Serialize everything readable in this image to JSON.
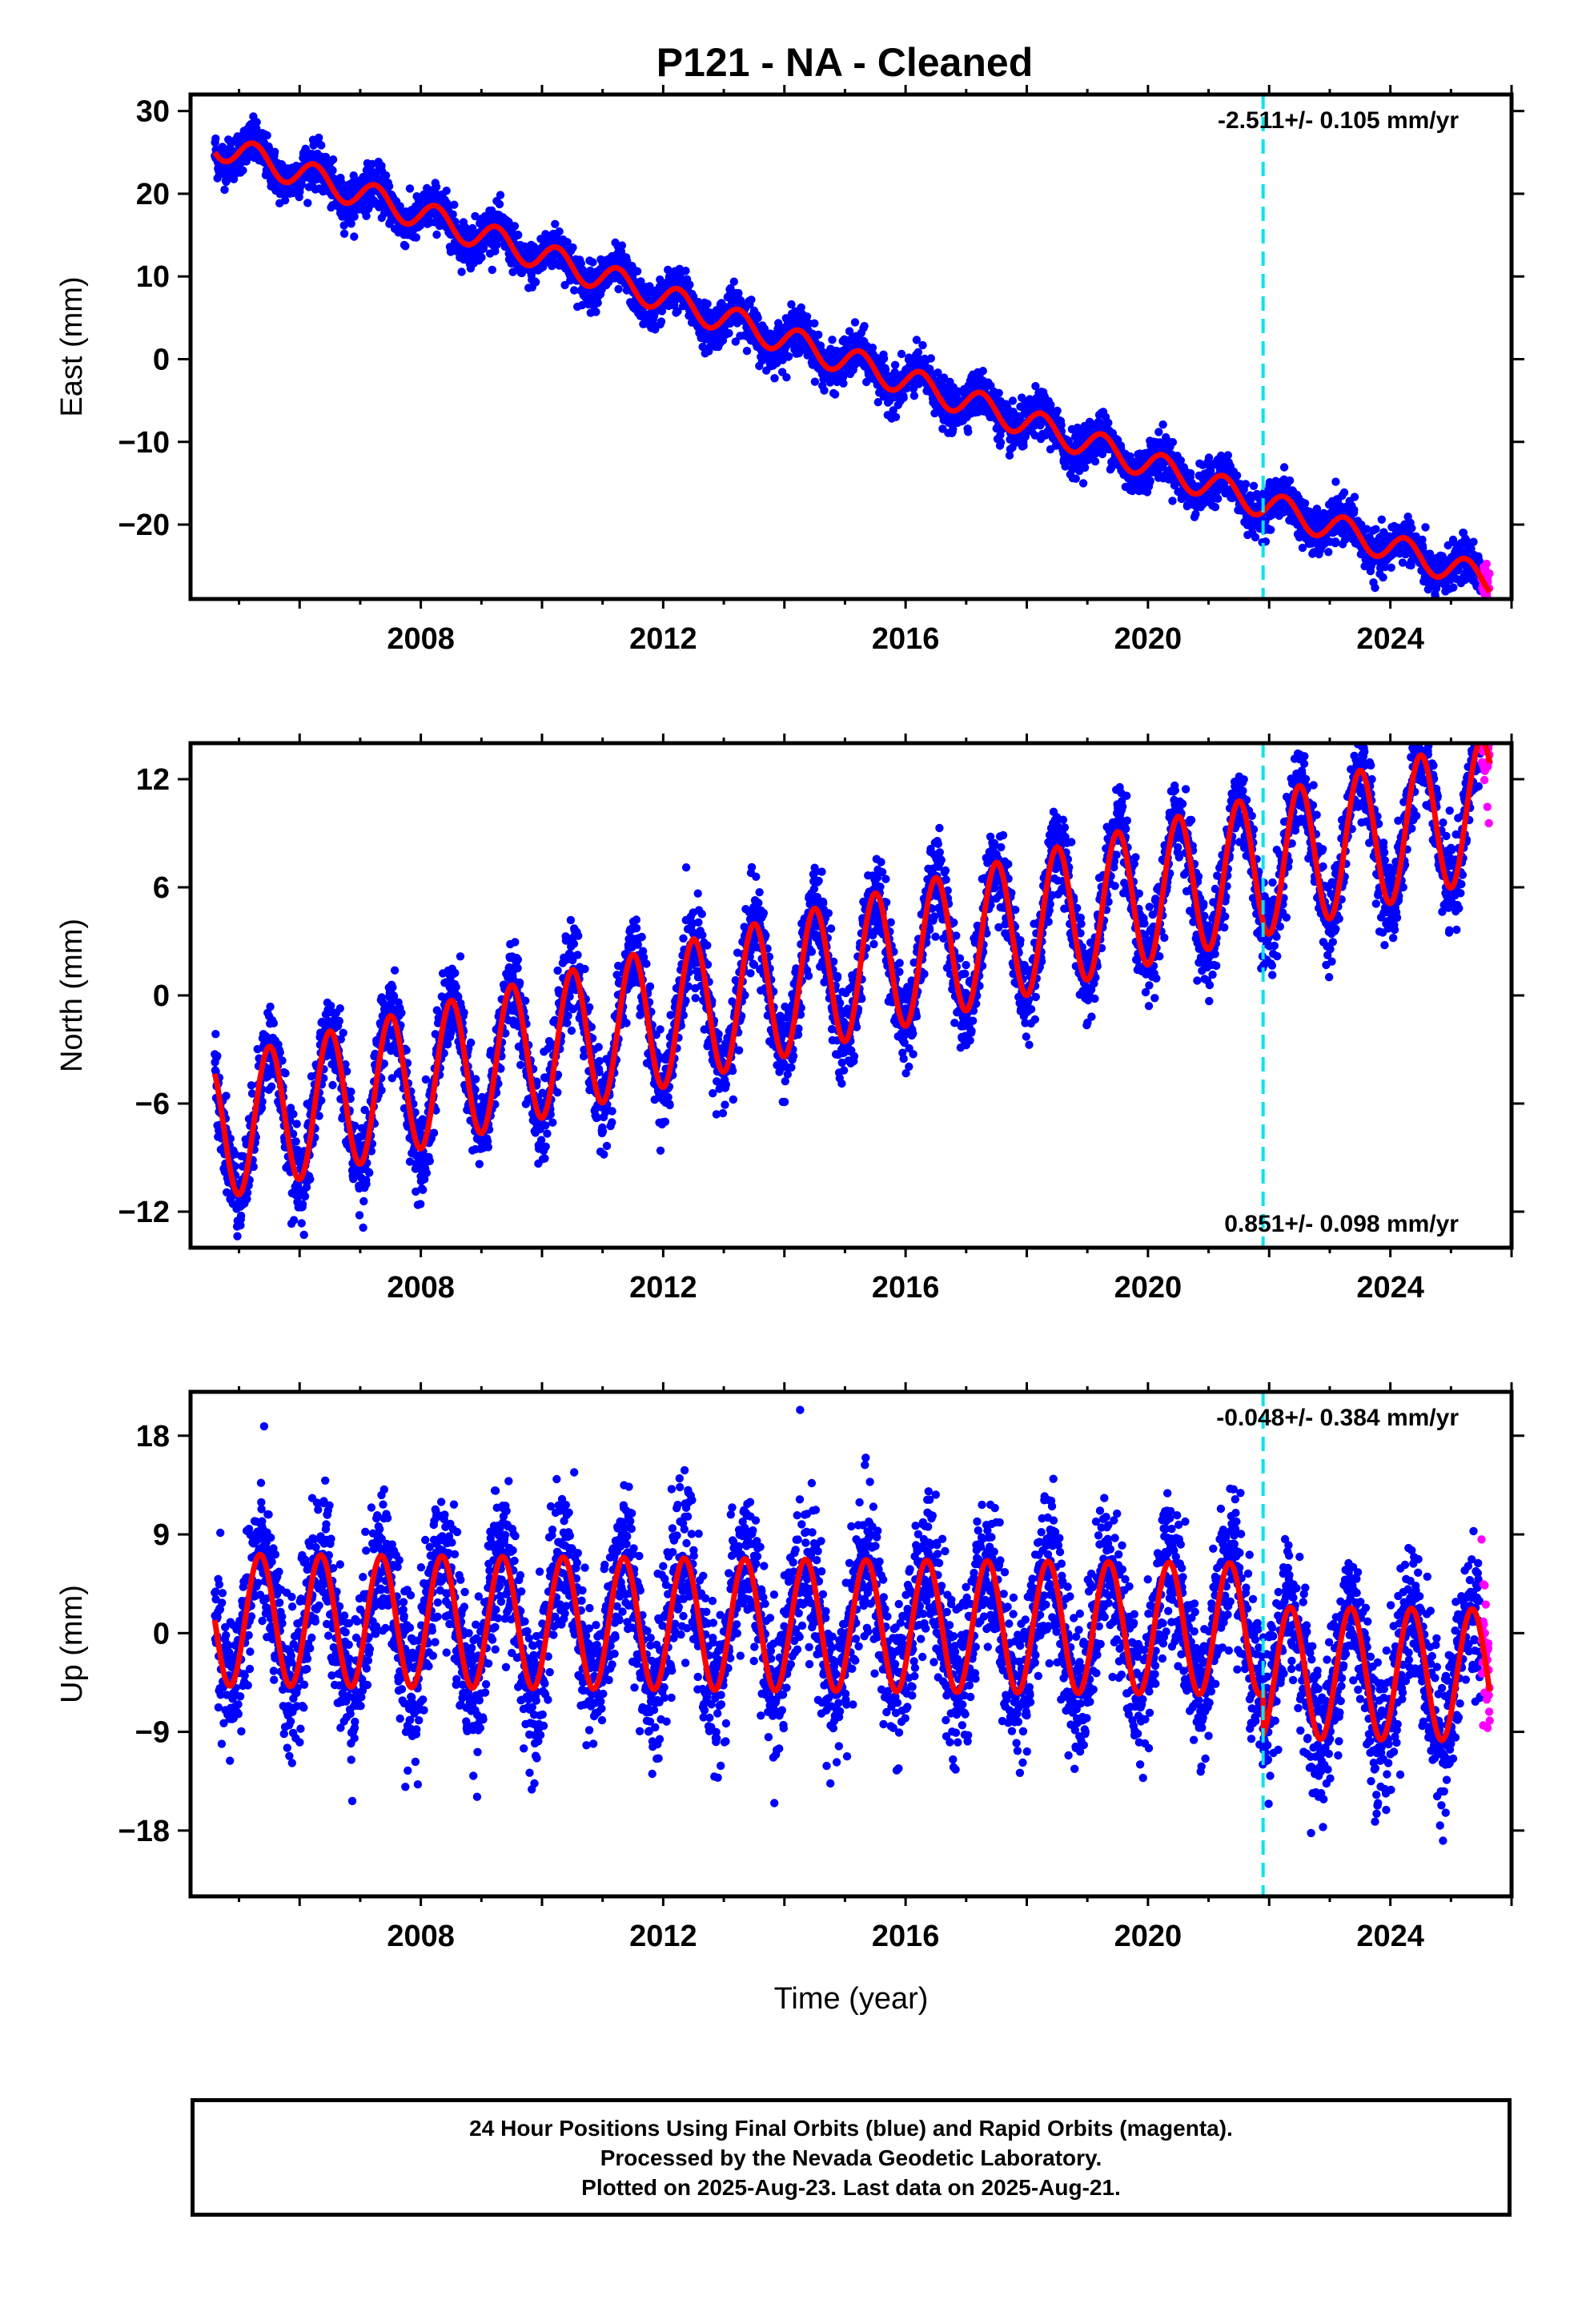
{
  "title": "P121  - NA - Cleaned",
  "colors": {
    "final_orbits": "#0000ff",
    "rapid_orbits": "#ff00ff",
    "model_fit": "#ff0000",
    "equipment_change": "#00e5ee",
    "frame": "#000000"
  },
  "footer": {
    "line1": "24 Hour Positions Using Final Orbits (blue) and Rapid Orbits (magenta).",
    "line2": "Processed by the Nevada Geodetic Laboratory.",
    "line3": "Plotted on 2025-Aug-23. Last data on 2025-Aug-21."
  },
  "chart_data": [
    {
      "type": "scatter",
      "name": "east",
      "ylabel": "East (mm)",
      "xlabel": "",
      "xlim": [
        2004.2,
        2026.0
      ],
      "ylim": [
        -29,
        32
      ],
      "x_ticks": [
        2008,
        2012,
        2016,
        2020,
        2024
      ],
      "y_ticks": [
        -20,
        -10,
        0,
        10,
        20,
        30
      ],
      "rate_label": "-2.511+/- 0.105 mm/yr",
      "rate_label_position": "top-right",
      "data_start": 2004.6,
      "data_end": 2025.64,
      "rapid_start": 2025.5,
      "equipment_change_year": 2021.9,
      "fit": {
        "intercept_2004_6": 26.0,
        "rate_mm_per_yr": -2.511,
        "annual_amplitude": 1.7,
        "annual_phase": 0.0,
        "scatter_std": 1.3
      },
      "offsets": []
    },
    {
      "type": "scatter",
      "name": "north",
      "ylabel": "North (mm)",
      "xlabel": "",
      "xlim": [
        2004.2,
        2026.0
      ],
      "ylim": [
        -14,
        14
      ],
      "x_ticks": [
        2008,
        2012,
        2016,
        2020,
        2024
      ],
      "y_ticks": [
        -12,
        -6,
        0,
        6,
        12
      ],
      "rate_label": "0.851+/- 0.098 mm/yr",
      "rate_label_position": "bottom-right",
      "data_start": 2004.6,
      "data_end": 2025.64,
      "rapid_start": 2025.5,
      "equipment_change_year": 2021.9,
      "fit": {
        "intercept_2004_6": -7.5,
        "rate_mm_per_yr": 0.851,
        "annual_amplitude": 3.9,
        "annual_phase": 0.25,
        "scatter_std": 1.2
      },
      "offsets": []
    },
    {
      "type": "scatter",
      "name": "up",
      "ylabel": "Up (mm)",
      "xlabel": "Time (year)",
      "xlim": [
        2004.2,
        2026.0
      ],
      "ylim": [
        -24,
        22
      ],
      "x_ticks": [
        2008,
        2012,
        2016,
        2020,
        2024
      ],
      "y_ticks": [
        -18,
        -9,
        0,
        9,
        18
      ],
      "rate_label": "-0.048+/- 0.384 mm/yr",
      "rate_label_position": "top-right",
      "data_start": 2004.6,
      "data_end": 2025.64,
      "rapid_start": 2025.5,
      "equipment_change_year": 2021.9,
      "fit": {
        "intercept_2004_6": 1.2,
        "rate_mm_per_yr": -0.048,
        "annual_amplitude": 6.0,
        "annual_phase": 0.1,
        "scatter_std": 3.4
      },
      "offsets": [
        {
          "year": 2021.9,
          "shift": -4.0
        }
      ]
    }
  ]
}
